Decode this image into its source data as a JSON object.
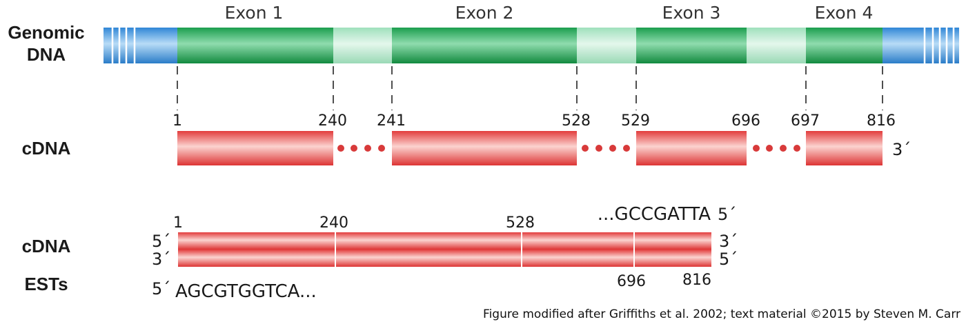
{
  "genomic": {
    "label_line1": "Genomic",
    "label_line2": "DNA",
    "exons": [
      "Exon  1",
      "Exon  2",
      "Exon  3",
      "Exon  4"
    ]
  },
  "cdna_top": {
    "label": "cDNA",
    "boundaries": [
      "1",
      "240",
      "241",
      "528",
      "529",
      "696",
      "697",
      "816"
    ],
    "three_prime": "3´"
  },
  "cdna_bottom": {
    "label": "cDNA",
    "top_numbers": [
      "1",
      "240",
      "528"
    ],
    "bottom_numbers": [
      "696",
      "816"
    ],
    "left_top_end": "5´",
    "left_bottom_end": "3´",
    "right_top_end": "3´",
    "right_bottom_end": "5´",
    "seq_top": "...GCCGATTA",
    "seq_top_end": "5´"
  },
  "ests": {
    "label": "ESTs",
    "end_label": "5´",
    "sequence": "AGCGTGGTCA..."
  },
  "credit": "Figure modified after Griffiths et al. 2002; text material ©2015 by Steven M. Carr",
  "colors": {
    "exon": "#1a9e4e",
    "intron": "#a8e3c3",
    "utr": "#3d8fd8",
    "cdna": "#e84a4a",
    "dots": "#d83a3a"
  }
}
